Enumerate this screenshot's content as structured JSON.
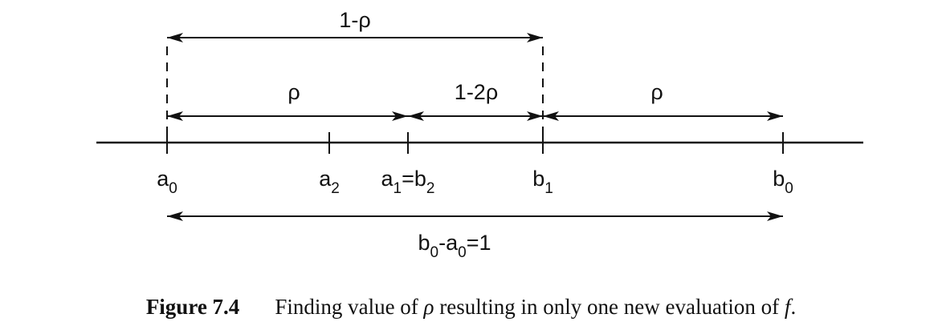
{
  "diagram": {
    "arrows": {
      "top_span": "1-ρ",
      "left_span": "ρ",
      "middle_span": "1-2ρ",
      "right_span": "ρ",
      "bottom_span": {
        "b": "b",
        "b_sub": "0",
        "minus": "-",
        "a": "a",
        "a_sub": "0",
        "rest": "=1"
      }
    },
    "points": {
      "a0": {
        "base": "a",
        "sub": "0"
      },
      "a2": {
        "base": "a",
        "sub": "2"
      },
      "a1_b2": {
        "base1": "a",
        "sub1": "1",
        "eq": "=",
        "base2": "b",
        "sub2": "2"
      },
      "b1": {
        "base": "b",
        "sub": "1"
      },
      "b0": {
        "base": "b",
        "sub": "0"
      }
    }
  },
  "caption": {
    "label": "Figure 7.4",
    "text_before": "Finding value of ",
    "rho": "ρ",
    "text_middle": " resulting in only one new evaluation of ",
    "f": "f",
    "text_after": "."
  }
}
